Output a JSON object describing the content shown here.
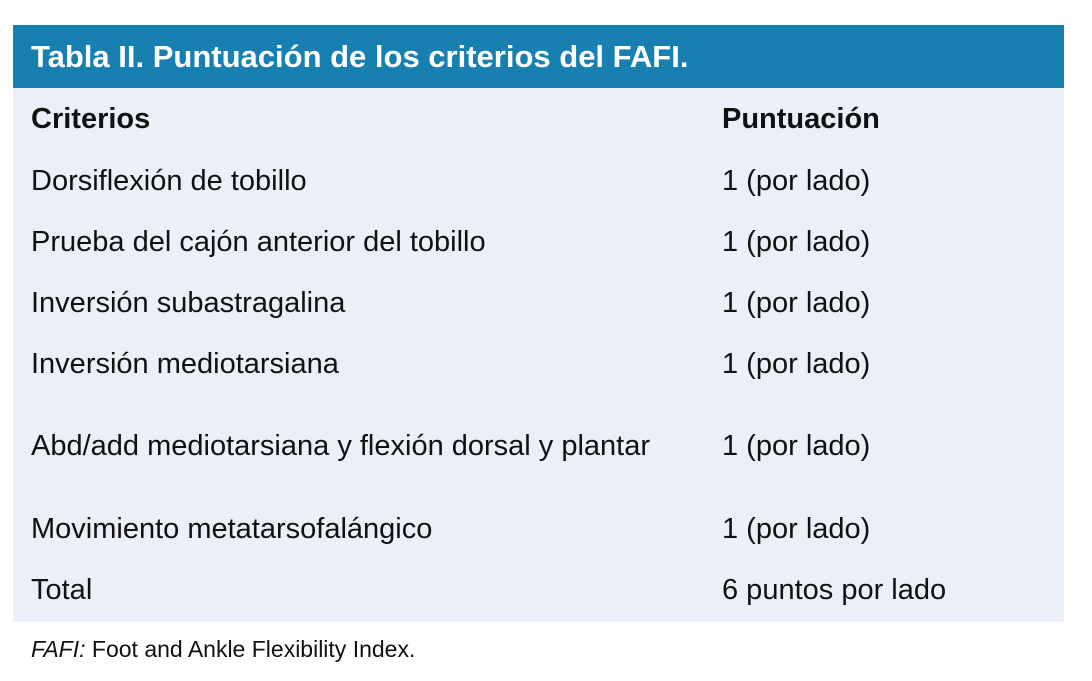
{
  "title": "Tabla II. Puntuación de los criterios del FAFI.",
  "columns": [
    "Criterios",
    "Puntuación"
  ],
  "rows": [
    {
      "criterio": "Dorsiflexión de tobillo",
      "puntuacion": "1 (por lado)"
    },
    {
      "criterio": "Prueba del cajón anterior del tobillo",
      "puntuacion": "1 (por lado)"
    },
    {
      "criterio": "Inversión subastragalina",
      "puntuacion": "1 (por lado)"
    },
    {
      "criterio": "Inversión mediotarsiana",
      "puntuacion": "1 (por lado)"
    },
    {
      "criterio": "Abd/add mediotarsiana y flexión dorsal y plantar",
      "puntuacion": "1 (por lado)"
    },
    {
      "criterio": "Movimiento metatarsofalángico",
      "puntuacion": "1 (por lado)"
    },
    {
      "criterio": "Total",
      "puntuacion": "6 puntos por lado"
    }
  ],
  "footnote": {
    "abbr": "FAFI:",
    "text": " Foot and Ankle Flexibility Index."
  },
  "colors": {
    "header": "#1780b0",
    "body": "#ebeff7"
  }
}
